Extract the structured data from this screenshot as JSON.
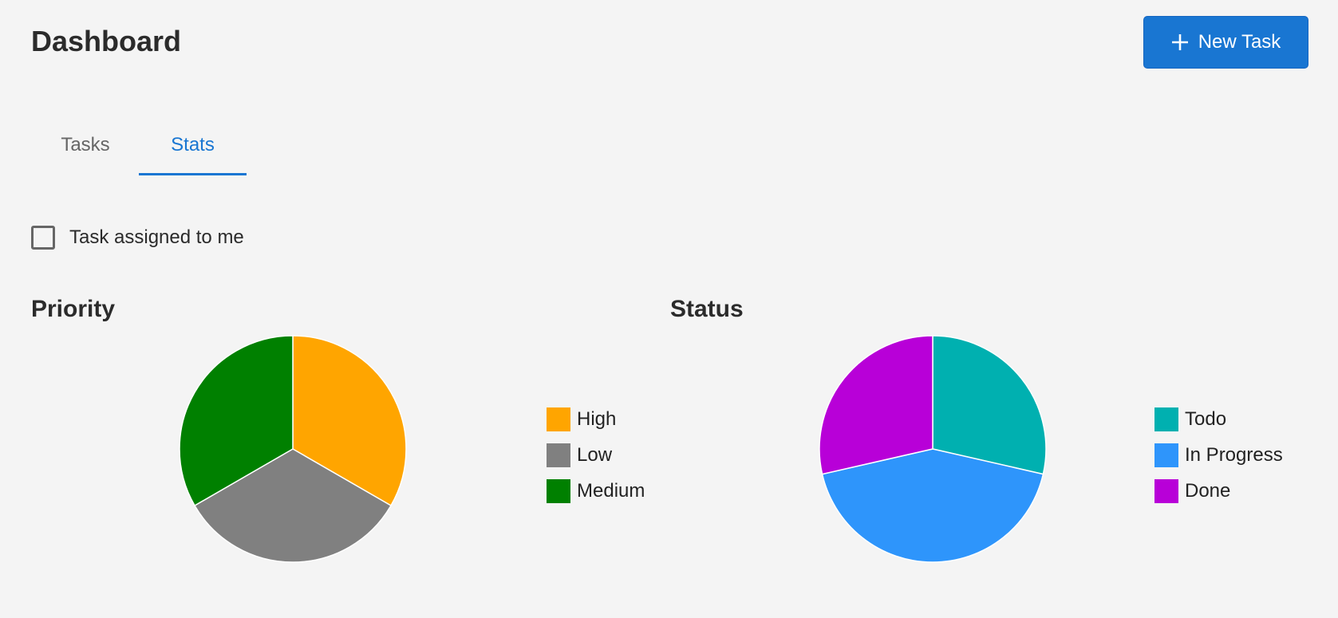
{
  "header": {
    "title": "Dashboard",
    "new_task_label": "New Task",
    "new_task_icon": "plus-icon"
  },
  "tabs": [
    {
      "label": "Tasks",
      "active": false
    },
    {
      "label": "Stats",
      "active": true
    }
  ],
  "filter": {
    "label": "Task assigned to me",
    "checked": false
  },
  "colors": {
    "accent": "#1976d2",
    "background": "#f4f4f4"
  },
  "chart_data": [
    {
      "type": "pie",
      "title": "Priority",
      "categories": [
        "High",
        "Low",
        "Medium"
      ],
      "values": [
        1,
        1,
        1
      ],
      "colors": [
        "#ffa500",
        "#808080",
        "#008000"
      ],
      "legend": "right"
    },
    {
      "type": "pie",
      "title": "Status",
      "categories": [
        "Todo",
        "In Progress",
        "Done"
      ],
      "values": [
        2,
        3,
        2
      ],
      "colors": [
        "#00b0b0",
        "#2e95fb",
        "#b800d8"
      ],
      "legend": "right"
    }
  ]
}
